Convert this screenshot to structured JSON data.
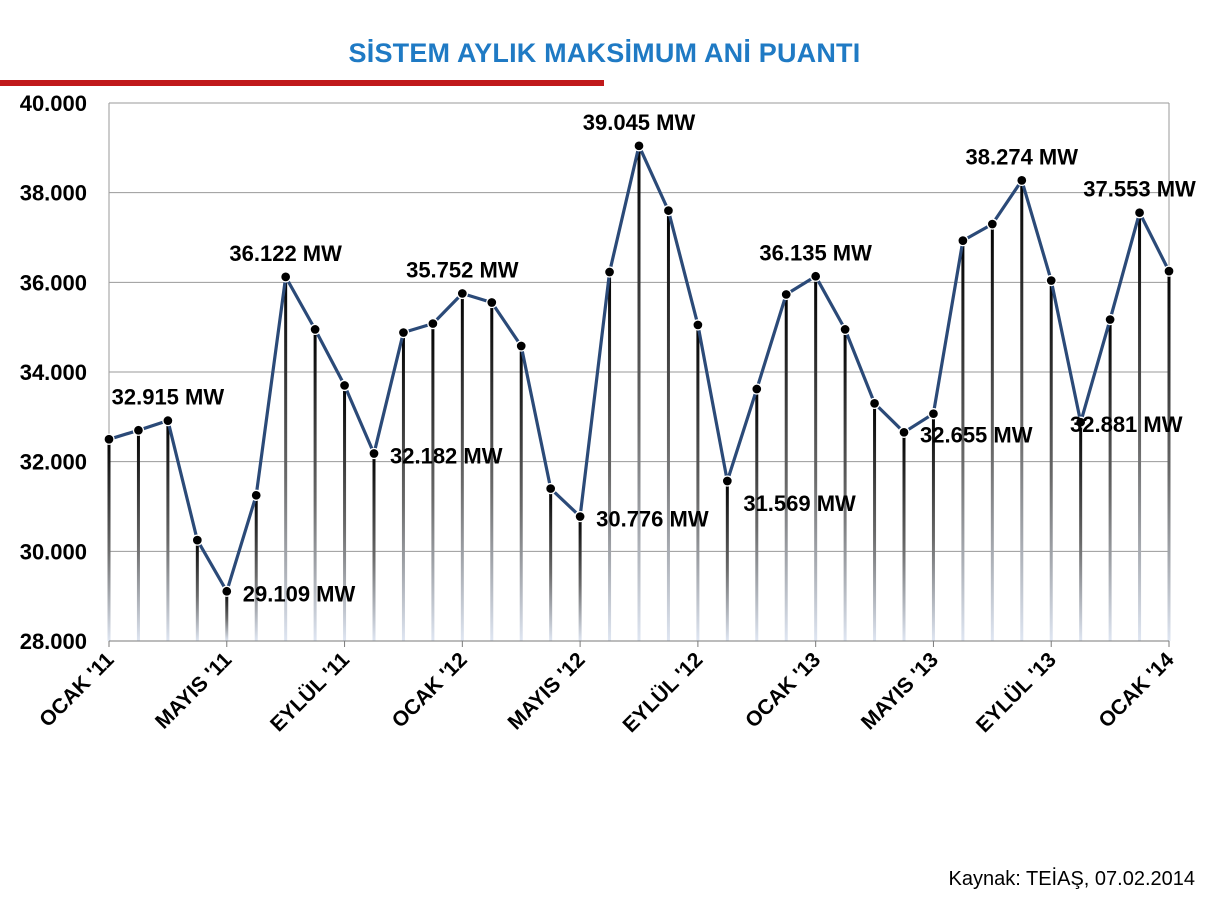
{
  "title": "SİSTEM AYLIK MAKSİMUM ANİ PUANTI",
  "source": "Kaynak: TEİAŞ, 07.02.2014",
  "colors": {
    "title": "#1f7ac4",
    "rule": "#c0191b",
    "line": "#2b4a78",
    "marker": "#000000",
    "grid": "#9a9a9a"
  },
  "chart_data": {
    "type": "line",
    "title": "SİSTEM AYLIK MAKSİMUM ANİ PUANTI",
    "xlabel": "",
    "ylabel": "",
    "ylim": [
      28000,
      40000
    ],
    "yticks": [
      28000,
      30000,
      32000,
      34000,
      36000,
      38000,
      40000
    ],
    "ytick_labels": [
      "28.000",
      "30.000",
      "32.000",
      "34.000",
      "36.000",
      "38.000",
      "40.000"
    ],
    "grid": true,
    "xtick_labels": [
      {
        "index": 0,
        "label": "OCAK '11"
      },
      {
        "index": 4,
        "label": "MAYIS '11"
      },
      {
        "index": 8,
        "label": "EYLÜL '11"
      },
      {
        "index": 12,
        "label": "OCAK '12"
      },
      {
        "index": 16,
        "label": "MAYIS '12"
      },
      {
        "index": 20,
        "label": "EYLÜL '12"
      },
      {
        "index": 24,
        "label": "OCAK '13"
      },
      {
        "index": 28,
        "label": "MAYIS '13"
      },
      {
        "index": 32,
        "label": "EYLÜL '13"
      },
      {
        "index": 36,
        "label": "OCAK '14"
      }
    ],
    "values": [
      32500,
      32700,
      32915,
      30250,
      29109,
      31250,
      36122,
      34950,
      33700,
      32182,
      34880,
      35080,
      35752,
      35550,
      34580,
      31400,
      30776,
      36230,
      39045,
      37600,
      35050,
      31569,
      33620,
      35730,
      36135,
      34950,
      33300,
      32655,
      33070,
      36930,
      37300,
      38274,
      36040,
      32881,
      35170,
      37553,
      36250
    ],
    "data_labels": [
      {
        "index": 2,
        "text": "32.915 MW",
        "pos": "above"
      },
      {
        "index": 4,
        "text": "29.109 MW",
        "pos": "right"
      },
      {
        "index": 6,
        "text": "36.122 MW",
        "pos": "above"
      },
      {
        "index": 9,
        "text": "32.182 MW",
        "pos": "right"
      },
      {
        "index": 12,
        "text": "35.752 MW",
        "pos": "above"
      },
      {
        "index": 16,
        "text": "30.776 MW",
        "pos": "right"
      },
      {
        "index": 18,
        "text": "39.045 MW",
        "pos": "above"
      },
      {
        "index": 21,
        "text": "31.569 MW",
        "pos": "below"
      },
      {
        "index": 24,
        "text": "36.135 MW",
        "pos": "above"
      },
      {
        "index": 27,
        "text": "32.655 MW",
        "pos": "right"
      },
      {
        "index": 31,
        "text": "38.274 MW",
        "pos": "above"
      },
      {
        "index": 33,
        "text": "32.881 MW",
        "pos": "right"
      },
      {
        "index": 35,
        "text": "37.553 MW",
        "pos": "above"
      }
    ]
  }
}
